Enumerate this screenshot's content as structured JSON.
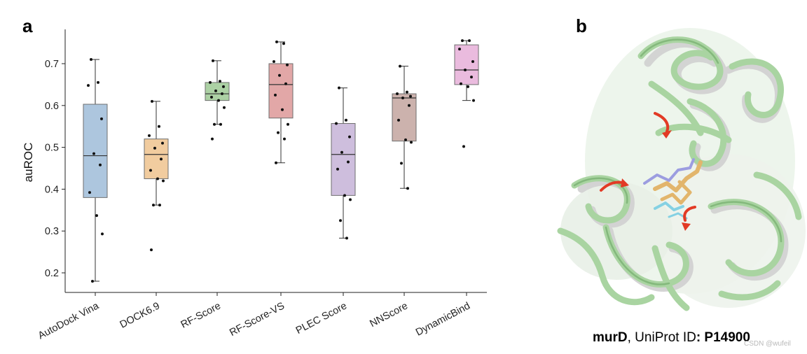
{
  "panels": {
    "a": "a",
    "b": "b"
  },
  "chart_data": {
    "type": "box",
    "ylabel": "auROC",
    "ylim": [
      0.17,
      0.8
    ],
    "yticks": [
      "0.2",
      "0.3",
      "0.4",
      "0.5",
      "0.6",
      "0.7"
    ],
    "grid": false,
    "categories": [
      "AutoDock Vina",
      "DOCK6.9",
      "RF-Score",
      "RF-Score-VS",
      "PLEC Score",
      "NNScore",
      "DynamicBind"
    ],
    "series": [
      {
        "category": "AutoDock Vina",
        "color": "#a9c3dc",
        "whisker_low": 0.18,
        "q1": 0.38,
        "median": 0.48,
        "q3": 0.603,
        "whisker_high": 0.71,
        "points": [
          0.71,
          0.655,
          0.648,
          0.568,
          0.485,
          0.458,
          0.392,
          0.337,
          0.293,
          0.18
        ]
      },
      {
        "category": "DOCK6.9",
        "color": "#f0c99a",
        "whisker_low": 0.362,
        "q1": 0.425,
        "median": 0.483,
        "q3": 0.52,
        "whisker_high": 0.61,
        "points": [
          0.61,
          0.55,
          0.528,
          0.51,
          0.498,
          0.472,
          0.445,
          0.425,
          0.42,
          0.362,
          0.362,
          0.255
        ]
      },
      {
        "category": "RF-Score",
        "color": "#a8cf9f",
        "whisker_low": 0.555,
        "q1": 0.612,
        "median": 0.628,
        "q3": 0.655,
        "whisker_high": 0.707,
        "points": [
          0.707,
          0.658,
          0.655,
          0.645,
          0.635,
          0.628,
          0.62,
          0.612,
          0.595,
          0.555,
          0.555,
          0.52
        ]
      },
      {
        "category": "RF-Score-VS",
        "color": "#e0a2a2",
        "whisker_low": 0.463,
        "q1": 0.57,
        "median": 0.65,
        "q3": 0.7,
        "whisker_high": 0.752,
        "points": [
          0.752,
          0.748,
          0.705,
          0.697,
          0.672,
          0.652,
          0.625,
          0.59,
          0.555,
          0.535,
          0.52,
          0.463
        ]
      },
      {
        "category": "PLEC Score",
        "color": "#cbbbdb",
        "whisker_low": 0.283,
        "q1": 0.385,
        "median": 0.483,
        "q3": 0.557,
        "whisker_high": 0.642,
        "points": [
          0.642,
          0.565,
          0.557,
          0.525,
          0.488,
          0.465,
          0.448,
          0.385,
          0.375,
          0.325,
          0.283
        ]
      },
      {
        "category": "NNScore",
        "color": "#c9aea9",
        "whisker_low": 0.402,
        "q1": 0.515,
        "median": 0.618,
        "q3": 0.628,
        "whisker_high": 0.694,
        "points": [
          0.694,
          0.632,
          0.628,
          0.622,
          0.618,
          0.6,
          0.565,
          0.518,
          0.512,
          0.462,
          0.402
        ]
      },
      {
        "category": "DynamicBind",
        "color": "#e9b7dc",
        "whisker_low": 0.612,
        "q1": 0.65,
        "median": 0.685,
        "q3": 0.745,
        "whisker_high": 0.755,
        "points": [
          0.755,
          0.755,
          0.735,
          0.705,
          0.685,
          0.668,
          0.652,
          0.645,
          0.612,
          0.502
        ]
      }
    ]
  },
  "structure": {
    "icon": "protein-structure-ribbon-icon",
    "protein_color": "#a9d4a1",
    "apo_color": "#d6d6d6",
    "arrow_color": "#e23a25",
    "ligand_colors": [
      "#e2b56c",
      "#9c9de0",
      "#85d1e3"
    ]
  },
  "caption": {
    "protein": "murD",
    "middle": ", UniProt ID",
    "id": ": P14900"
  },
  "watermark": "CSDN @wufeil"
}
